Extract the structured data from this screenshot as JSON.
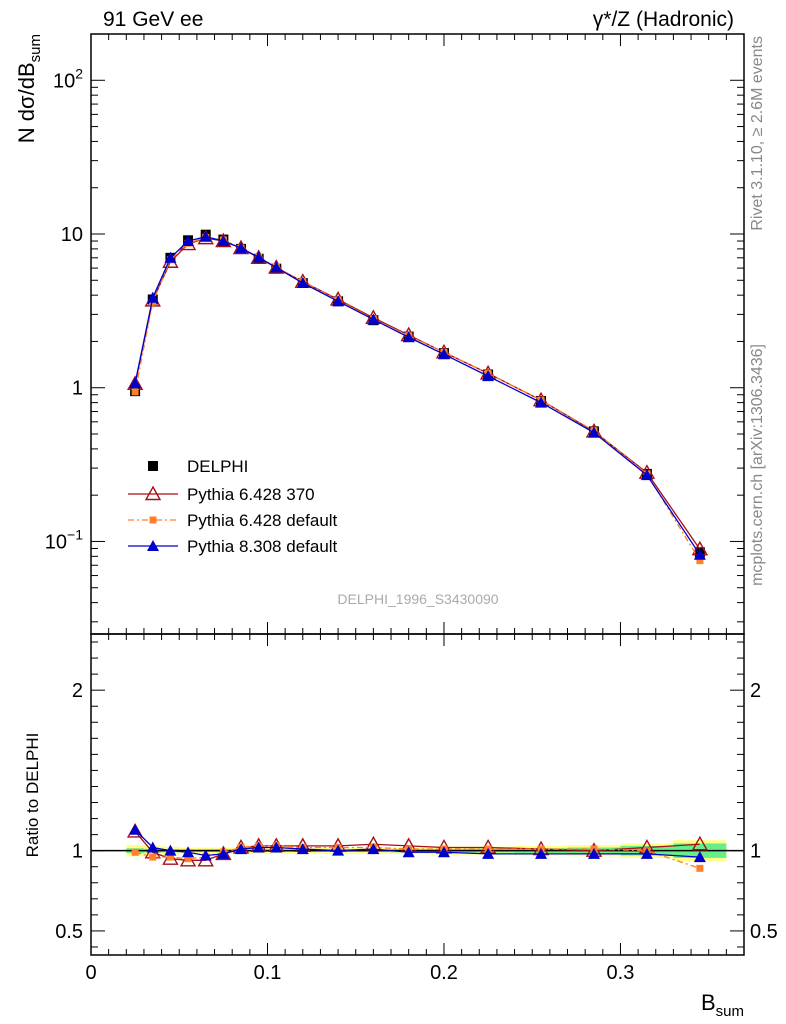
{
  "header": {
    "left": "91 GeV ee",
    "right": "γ*/Z (Hadronic)"
  },
  "side_labels": {
    "rivet": "Rivet 3.1.10, ≥ 2.6M events",
    "mcplots": "mcplots.cern.ch [arXiv:1306.3436]"
  },
  "chart_data": {
    "type": "scatter",
    "analysis_label": "DELPHI_1996_S3430090",
    "xlabel_main": "B",
    "xlabel_sub": "sum",
    "ylabel_main": "N dσ/dB",
    "ylabel_sub": "sum",
    "ratio_ylabel": "Ratio to DELPHI",
    "xlim": [
      0,
      0.37
    ],
    "ylim": [
      0.025,
      200
    ],
    "yscale": "log",
    "ratio_ylim": [
      0.35,
      2.35
    ],
    "x_tick_labels": [
      "0",
      "0.1",
      "0.2",
      "0.3"
    ],
    "x_tick_values": [
      0,
      0.1,
      0.2,
      0.3
    ],
    "ratio_tick_labels": [
      "0.5",
      "1",
      "2"
    ],
    "ratio_tick_values": [
      0.5,
      1,
      2
    ],
    "x": [
      0.025,
      0.035,
      0.045,
      0.055,
      0.065,
      0.075,
      0.085,
      0.095,
      0.105,
      0.12,
      0.14,
      0.16,
      0.18,
      0.2,
      0.225,
      0.255,
      0.285,
      0.315,
      0.345
    ],
    "series": [
      {
        "name": "DELPHI",
        "color": "#000000",
        "marker": "square",
        "values": [
          0.95,
          3.75,
          7.0,
          9.1,
          9.9,
          9.2,
          8.0,
          6.9,
          5.95,
          4.8,
          3.65,
          2.75,
          2.15,
          1.68,
          1.22,
          0.82,
          0.52,
          0.275,
          0.085
        ]
      },
      {
        "name": "Pythia 6.428 370",
        "color": "#a50f15",
        "marker": "triangle-open",
        "values": [
          1.06,
          3.7,
          6.6,
          8.6,
          9.4,
          9.0,
          8.1,
          7.0,
          6.05,
          4.9,
          3.75,
          2.85,
          2.2,
          1.7,
          1.24,
          0.83,
          0.52,
          0.28,
          0.089
        ]
      },
      {
        "name": "Pythia 6.428 default",
        "color": "#ff7f2a",
        "marker": "square-small",
        "values": [
          0.94,
          3.6,
          6.8,
          8.7,
          9.5,
          9.15,
          8.1,
          7.05,
          6.1,
          4.9,
          3.72,
          2.8,
          2.18,
          1.7,
          1.24,
          0.83,
          0.525,
          0.275,
          0.075
        ]
      },
      {
        "name": "Pythia 8.308 default",
        "color": "#0000cc",
        "marker": "triangle",
        "values": [
          1.07,
          3.85,
          7.0,
          9.0,
          9.6,
          9.0,
          8.1,
          7.05,
          6.05,
          4.8,
          3.65,
          2.78,
          2.13,
          1.65,
          1.19,
          0.8,
          0.51,
          0.27,
          0.082
        ]
      }
    ],
    "ratio_series": [
      {
        "name": "Pythia 6.428 370",
        "values": [
          1.12,
          0.99,
          0.95,
          0.94,
          0.94,
          0.98,
          1.02,
          1.03,
          1.03,
          1.03,
          1.03,
          1.04,
          1.03,
          1.02,
          1.02,
          1.01,
          1.0,
          1.02,
          1.04
        ]
      },
      {
        "name": "Pythia 6.428 default",
        "values": [
          0.99,
          0.96,
          0.96,
          0.95,
          0.96,
          0.99,
          1.02,
          1.03,
          1.03,
          1.02,
          1.02,
          1.02,
          1.01,
          1.01,
          1.01,
          1.01,
          1.01,
          1.0,
          0.89
        ]
      },
      {
        "name": "Pythia 8.308 default",
        "values": [
          1.13,
          1.02,
          1.0,
          0.99,
          0.97,
          0.98,
          1.01,
          1.02,
          1.02,
          1.01,
          1.0,
          1.01,
          0.99,
          0.99,
          0.98,
          0.98,
          0.98,
          0.98,
          0.96
        ]
      }
    ],
    "ratio_bands": {
      "yellow_halfwidth": [
        0.035,
        0.03,
        0.025,
        0.02,
        0.02,
        0.02,
        0.02,
        0.02,
        0.02,
        0.02,
        0.02,
        0.02,
        0.02,
        0.025,
        0.025,
        0.03,
        0.035,
        0.045,
        0.065
      ],
      "green_halfwidth": [
        0.015,
        0.012,
        0.01,
        0.008,
        0.008,
        0.008,
        0.008,
        0.008,
        0.008,
        0.008,
        0.008,
        0.008,
        0.01,
        0.01,
        0.012,
        0.015,
        0.02,
        0.03,
        0.045
      ],
      "yellow_color": "#ffff88",
      "green_color": "#66ee88"
    }
  }
}
